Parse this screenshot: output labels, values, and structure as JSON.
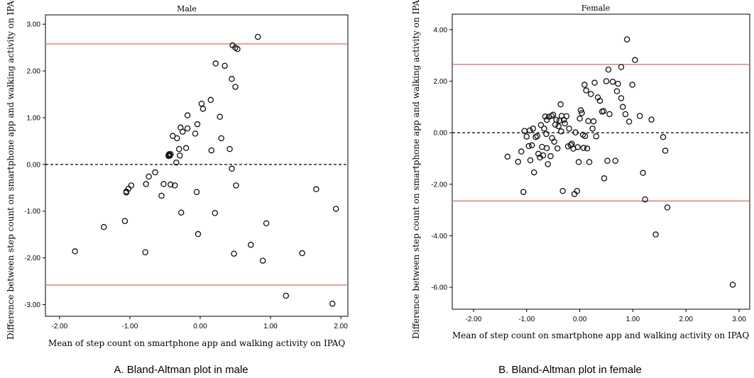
{
  "chart_data": [
    {
      "type": "scatter",
      "title": "Male",
      "xlabel": "Mean of step count on smartphone app and walking activity on IPAQ",
      "ylabel": "Difference between step count on smartphone app and walking activity on IPAQ",
      "caption": "A. Bland-Altman plot in male",
      "xlim": [
        -2.2,
        2.1
      ],
      "ylim": [
        -3.25,
        3.2
      ],
      "xticks": [
        -2.0,
        -1.0,
        0.0,
        1.0,
        2.0
      ],
      "xtick_labels": [
        "-2.00",
        "-1.00",
        "0.00",
        "1.00",
        "2.00"
      ],
      "yticks": [
        -3.0,
        -2.0,
        -1.0,
        0.0,
        1.0,
        2.0,
        3.0
      ],
      "ytick_labels": [
        "-3.00",
        "-2.00",
        "-1.00",
        "0.00",
        "1.00",
        "2.00",
        "3.00"
      ],
      "mean_line": 0.0,
      "limits_of_agreement": [
        2.58,
        -2.58
      ],
      "colors": {
        "limits": "#e06666",
        "mean": "#000000",
        "points": "#111111"
      },
      "grid": false,
      "points": [
        [
          -1.78,
          -1.86
        ],
        [
          -1.37,
          -1.34
        ],
        [
          -1.07,
          -1.21
        ],
        [
          -1.05,
          -0.6
        ],
        [
          -1.05,
          -0.58
        ],
        [
          -1.02,
          -0.52
        ],
        [
          -0.98,
          -0.45
        ],
        [
          -0.78,
          -1.88
        ],
        [
          -0.77,
          -0.42
        ],
        [
          -0.73,
          -0.26
        ],
        [
          -0.64,
          -0.17
        ],
        [
          -0.55,
          -0.67
        ],
        [
          -0.52,
          -0.42
        ],
        [
          -0.45,
          0.18
        ],
        [
          -0.45,
          0.2
        ],
        [
          -0.44,
          0.22
        ],
        [
          -0.43,
          0.19
        ],
        [
          -0.42,
          0.22
        ],
        [
          -0.42,
          -0.43
        ],
        [
          -0.39,
          0.61
        ],
        [
          -0.36,
          -0.45
        ],
        [
          -0.34,
          0.04
        ],
        [
          -0.33,
          0.56
        ],
        [
          -0.3,
          0.33
        ],
        [
          -0.29,
          0.19
        ],
        [
          -0.28,
          0.79
        ],
        [
          -0.27,
          -1.03
        ],
        [
          -0.25,
          0.7
        ],
        [
          -0.2,
          0.35
        ],
        [
          -0.18,
          0.77
        ],
        [
          -0.18,
          1.05
        ],
        [
          -0.07,
          0.66
        ],
        [
          -0.05,
          -0.59
        ],
        [
          -0.04,
          0.86
        ],
        [
          -0.03,
          -1.49
        ],
        [
          0.02,
          1.3
        ],
        [
          0.04,
          1.19
        ],
        [
          0.15,
          1.38
        ],
        [
          0.16,
          0.3
        ],
        [
          0.21,
          -1.04
        ],
        [
          0.22,
          2.16
        ],
        [
          0.28,
          1.02
        ],
        [
          0.3,
          0.56
        ],
        [
          0.35,
          2.11
        ],
        [
          0.42,
          0.33
        ],
        [
          0.45,
          -0.09
        ],
        [
          0.45,
          1.83
        ],
        [
          0.46,
          2.55
        ],
        [
          0.48,
          -1.91
        ],
        [
          0.5,
          1.66
        ],
        [
          0.5,
          2.5
        ],
        [
          0.51,
          -0.45
        ],
        [
          0.53,
          2.47
        ],
        [
          0.72,
          -1.72
        ],
        [
          0.82,
          2.73
        ],
        [
          0.89,
          -2.06
        ],
        [
          0.94,
          -1.26
        ],
        [
          1.22,
          -2.81
        ],
        [
          1.45,
          -1.9
        ],
        [
          1.65,
          -0.53
        ],
        [
          1.88,
          -2.98
        ],
        [
          1.93,
          -0.95
        ]
      ]
    },
    {
      "type": "scatter",
      "title": "Female",
      "xlabel": "Mean of step count on smartphone app and walking activity on IPAQ",
      "ylabel": "Difference between step count on smartphone app and walking activity on IPAQ",
      "caption": "B. Bland-Altman plot in female",
      "xlim": [
        -2.4,
        3.2
      ],
      "ylim": [
        -6.85,
        4.6
      ],
      "xticks": [
        -2.0,
        -1.0,
        0.0,
        1.0,
        2.0,
        3.0
      ],
      "xtick_labels": [
        "-2.00",
        "-1.00",
        "0.00",
        "1.00",
        "2.00",
        "3.00"
      ],
      "yticks": [
        -6.0,
        -4.0,
        -2.0,
        0.0,
        2.0,
        4.0
      ],
      "ytick_labels": [
        "-6.00",
        "-4.00",
        "-2.00",
        "0.00",
        "2.00",
        "4.00"
      ],
      "mean_line": 0.0,
      "limits_of_agreement": [
        2.65,
        -2.65
      ],
      "colors": {
        "limits": "#e06666",
        "mean": "#000000",
        "points": "#111111"
      },
      "grid": false,
      "points": [
        [
          -1.36,
          -0.93
        ],
        [
          -1.16,
          -1.13
        ],
        [
          -1.1,
          -0.73
        ],
        [
          -1.06,
          -2.3
        ],
        [
          -1.04,
          0.07
        ],
        [
          -1.0,
          -0.15
        ],
        [
          -0.96,
          -0.52
        ],
        [
          -0.94,
          0.09
        ],
        [
          -0.93,
          -1.07
        ],
        [
          -0.9,
          -0.49
        ],
        [
          -0.88,
          0.16
        ],
        [
          -0.86,
          -1.54
        ],
        [
          -0.83,
          -0.17
        ],
        [
          -0.8,
          -0.13
        ],
        [
          -0.78,
          -0.82
        ],
        [
          -0.75,
          -0.96
        ],
        [
          -0.73,
          0.3
        ],
        [
          -0.71,
          -0.55
        ],
        [
          -0.69,
          -0.88
        ],
        [
          -0.67,
          0.16
        ],
        [
          -0.65,
          0.63
        ],
        [
          -0.63,
          -0.05
        ],
        [
          -0.62,
          0.5
        ],
        [
          -0.62,
          -0.6
        ],
        [
          -0.6,
          -1.22
        ],
        [
          -0.58,
          0.62
        ],
        [
          -0.55,
          -0.91
        ],
        [
          -0.53,
          0.65
        ],
        [
          -0.52,
          -0.21
        ],
        [
          -0.5,
          0.7
        ],
        [
          -0.48,
          -0.35
        ],
        [
          -0.46,
          0.31
        ],
        [
          -0.44,
          0.5
        ],
        [
          -0.42,
          -0.61
        ],
        [
          -0.4,
          0.25
        ],
        [
          -0.38,
          0.47
        ],
        [
          -0.36,
          1.1
        ],
        [
          -0.35,
          0.05
        ],
        [
          -0.34,
          0.65
        ],
        [
          -0.32,
          -2.26
        ],
        [
          -0.3,
          0.5
        ],
        [
          -0.28,
          0.36
        ],
        [
          -0.25,
          0.64
        ],
        [
          -0.22,
          -0.53
        ],
        [
          -0.2,
          0.16
        ],
        [
          -0.17,
          -0.48
        ],
        [
          -0.15,
          -0.43
        ],
        [
          -0.12,
          -0.62
        ],
        [
          -0.1,
          -2.38
        ],
        [
          -0.08,
          0.01
        ],
        [
          -0.05,
          -2.26
        ],
        [
          -0.04,
          -0.56
        ],
        [
          -0.02,
          -1.14
        ],
        [
          0.0,
          0.55
        ],
        [
          0.02,
          0.87
        ],
        [
          0.04,
          0.76
        ],
        [
          0.06,
          -0.08
        ],
        [
          0.07,
          -0.59
        ],
        [
          0.09,
          1.86
        ],
        [
          0.1,
          -0.13
        ],
        [
          0.12,
          1.64
        ],
        [
          0.14,
          -0.61
        ],
        [
          0.16,
          0.45
        ],
        [
          0.18,
          -1.14
        ],
        [
          0.21,
          1.5
        ],
        [
          0.24,
          0.16
        ],
        [
          0.26,
          0.44
        ],
        [
          0.28,
          1.94
        ],
        [
          0.31,
          -0.14
        ],
        [
          0.34,
          1.37
        ],
        [
          0.38,
          1.24
        ],
        [
          0.42,
          0.82
        ],
        [
          0.45,
          0.84
        ],
        [
          0.46,
          -1.77
        ],
        [
          0.5,
          2.0
        ],
        [
          0.52,
          -1.09
        ],
        [
          0.54,
          2.45
        ],
        [
          0.56,
          0.72
        ],
        [
          0.62,
          1.98
        ],
        [
          0.67,
          -1.09
        ],
        [
          0.7,
          1.61
        ],
        [
          0.72,
          1.9
        ],
        [
          0.78,
          1.34
        ],
        [
          0.78,
          2.55
        ],
        [
          0.81,
          1.0
        ],
        [
          0.86,
          0.72
        ],
        [
          0.89,
          3.62
        ],
        [
          0.93,
          0.43
        ],
        [
          0.99,
          1.86
        ],
        [
          1.04,
          2.82
        ],
        [
          1.13,
          0.65
        ],
        [
          1.19,
          -1.56
        ],
        [
          1.23,
          -2.59
        ],
        [
          1.35,
          0.51
        ],
        [
          1.43,
          -3.95
        ],
        [
          1.57,
          -0.17
        ],
        [
          1.61,
          -0.7
        ],
        [
          1.65,
          -2.9
        ],
        [
          2.88,
          -5.9
        ]
      ]
    }
  ]
}
